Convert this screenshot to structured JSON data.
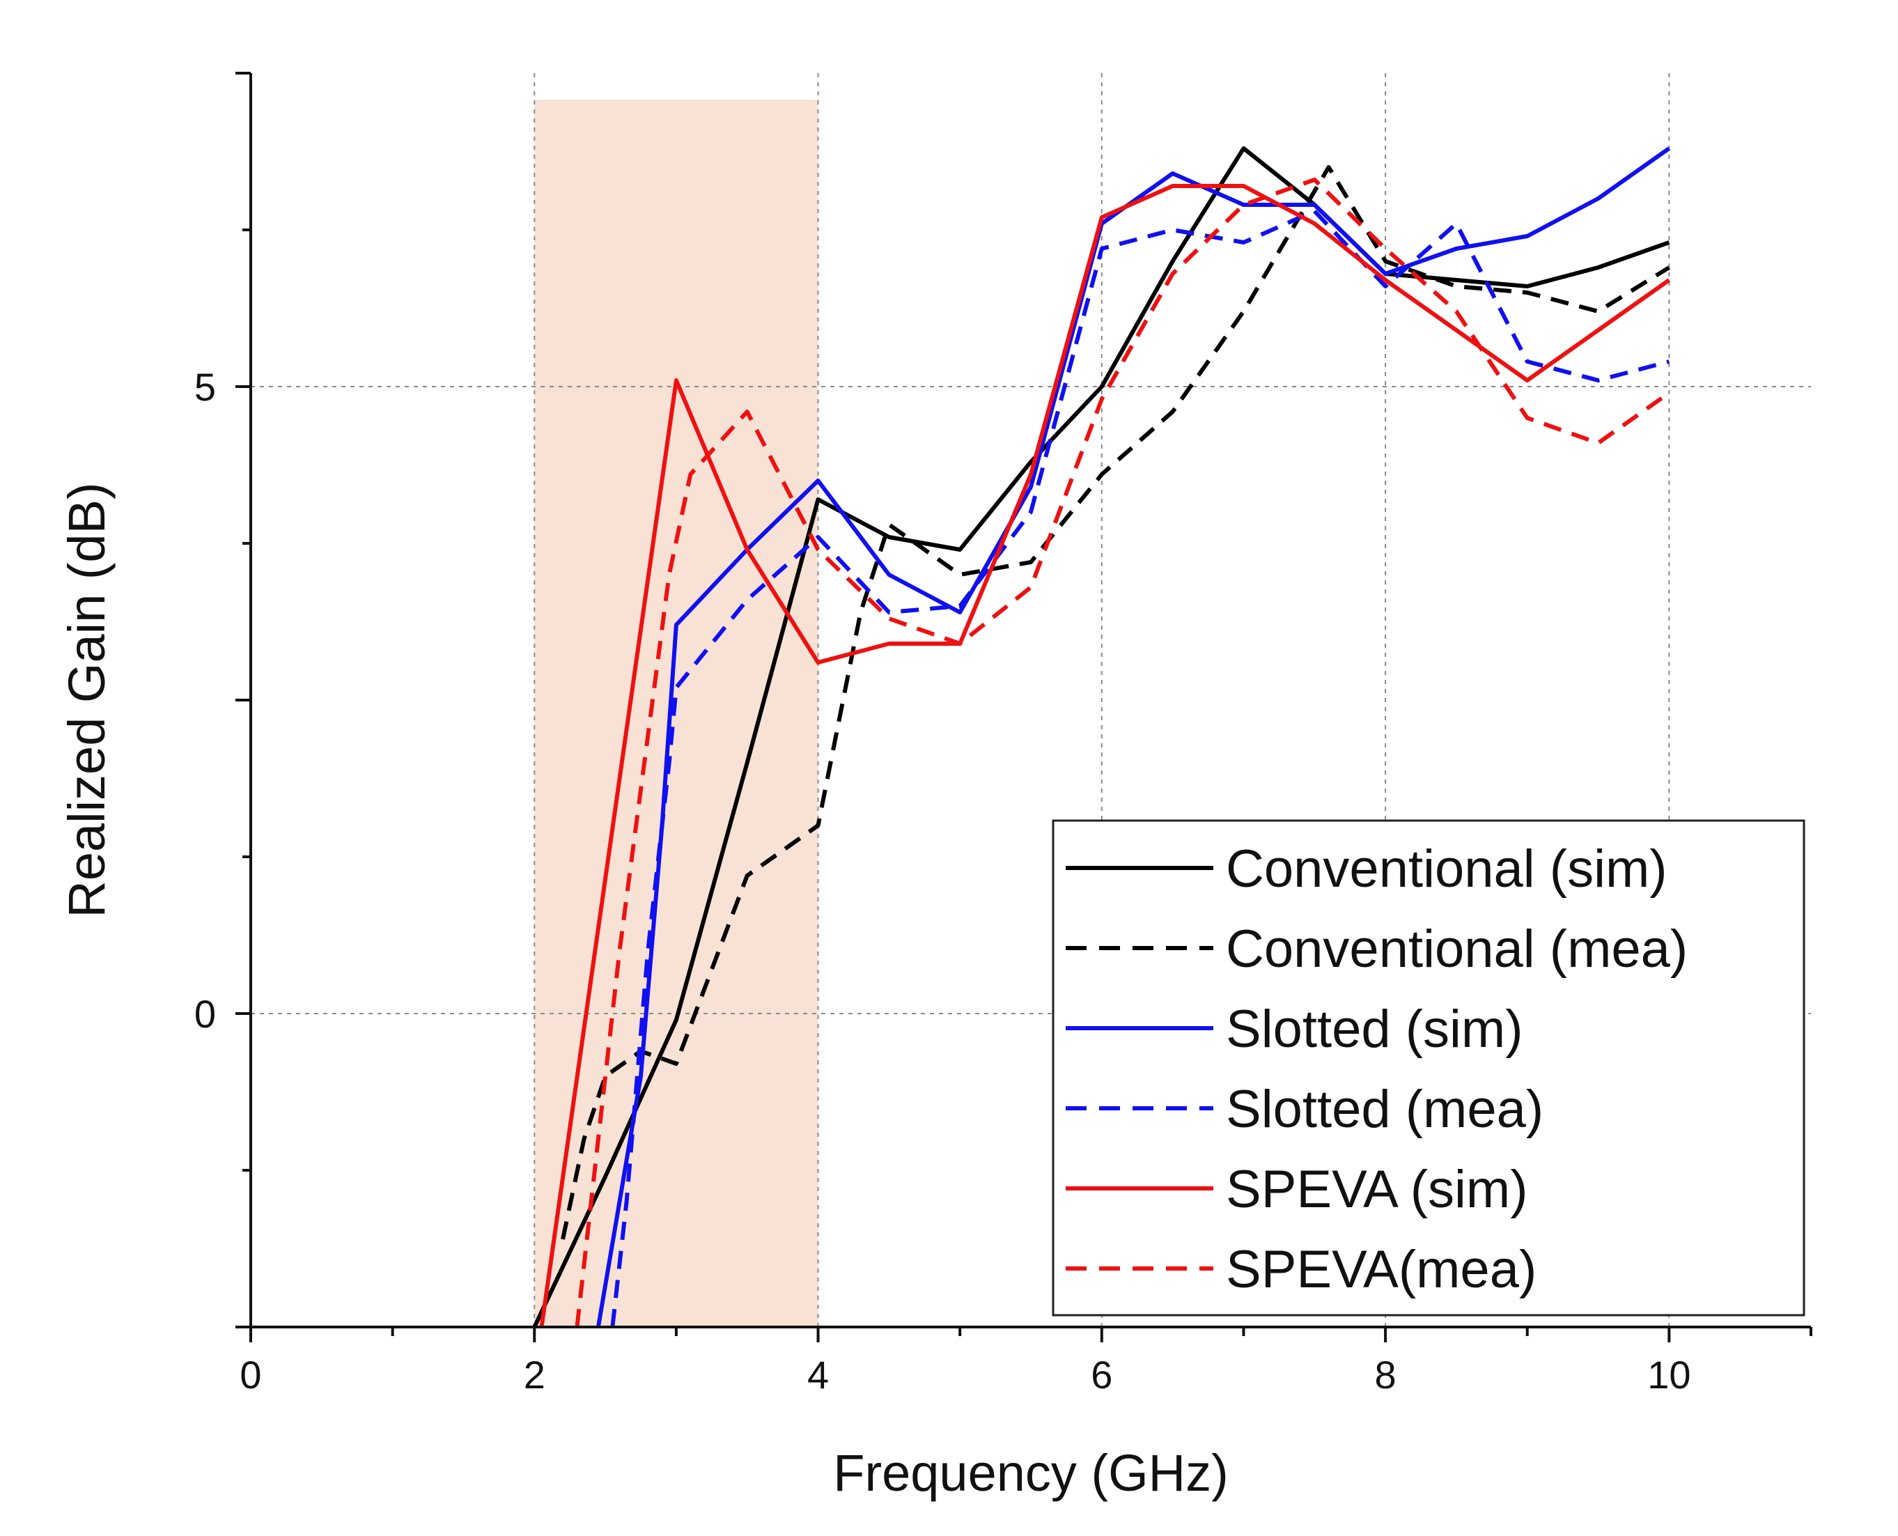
{
  "chart_data": {
    "type": "line",
    "title": "",
    "xlabel": "Frequency (GHz)",
    "ylabel": "Realized Gain (dB)",
    "xlim": [
      0,
      11
    ],
    "ylim": [
      -2.5,
      7.5
    ],
    "x_ticks": [
      0,
      2,
      4,
      6,
      8,
      10
    ],
    "x_tick_labels": [
      "0",
      "2",
      "4",
      "6",
      "8",
      "10"
    ],
    "y_ticks": [
      0,
      5
    ],
    "y_tick_labels": [
      "0",
      "5"
    ],
    "grid": true,
    "highlight_band": {
      "x_from": 2,
      "x_to": 4,
      "color": "#f7e2d5"
    },
    "legend_position": "bottom-right",
    "series": [
      {
        "name": "Conventional (sim)",
        "color": "#000000",
        "dash": "solid",
        "x": [
          2,
          2.5,
          3,
          3.5,
          4,
          4.5,
          5,
          5.5,
          6,
          6.5,
          7,
          7.5,
          8,
          8.5,
          9,
          9.5,
          10
        ],
        "y": [
          -2.5,
          -1.3,
          -0.05,
          2.0,
          4.1,
          3.8,
          3.7,
          4.4,
          5.0,
          6.0,
          6.9,
          6.45,
          5.9,
          5.85,
          5.8,
          5.95,
          6.15
        ]
      },
      {
        "name": "Conventional (mea)",
        "color": "#000000",
        "dash": "dashed",
        "x": [
          2.2,
          2.35,
          2.5,
          2.75,
          3,
          3.5,
          4,
          4.3,
          4.5,
          5,
          5.5,
          6,
          6.5,
          7,
          7.6,
          8,
          8.5,
          9,
          9.5,
          10
        ],
        "y": [
          -1.8,
          -1.0,
          -0.5,
          -0.3,
          -0.4,
          1.1,
          1.5,
          3.2,
          3.9,
          3.5,
          3.6,
          4.3,
          4.8,
          5.6,
          6.75,
          6.0,
          5.8,
          5.75,
          5.6,
          5.95
        ]
      },
      {
        "name": "Slotted (sim)",
        "color": "#1010f0",
        "dash": "solid",
        "x": [
          2.45,
          2.6,
          2.75,
          2.9,
          3,
          3.5,
          4,
          4.5,
          5,
          5.5,
          6,
          6.5,
          7,
          7.5,
          8,
          8.5,
          9,
          9.5,
          10
        ],
        "y": [
          -2.5,
          -1.5,
          -0.5,
          1.5,
          3.1,
          3.7,
          4.25,
          3.5,
          3.2,
          4.2,
          6.3,
          6.7,
          6.45,
          6.45,
          5.9,
          6.1,
          6.2,
          6.5,
          6.9
        ]
      },
      {
        "name": "Slotted (mea)",
        "color": "#1010f0",
        "dash": "dashed",
        "x": [
          2.55,
          2.65,
          2.8,
          2.95,
          3,
          3.5,
          4,
          4.5,
          5,
          5.5,
          6,
          6.5,
          7,
          7.5,
          8,
          8.5,
          9,
          9.5,
          10
        ],
        "y": [
          -2.5,
          -1.5,
          0.5,
          2.0,
          2.6,
          3.3,
          3.8,
          3.2,
          3.25,
          4.0,
          6.1,
          6.25,
          6.15,
          6.4,
          5.8,
          6.3,
          5.2,
          5.05,
          5.2
        ]
      },
      {
        "name": "SPEVA (sim)",
        "color": "#ee1111",
        "dash": "solid",
        "x": [
          2.05,
          3,
          3.5,
          4,
          4.5,
          5,
          5.5,
          6,
          6.5,
          7,
          7.5,
          8,
          8.5,
          9,
          9.5,
          10
        ],
        "y": [
          -2.5,
          5.05,
          3.7,
          2.8,
          2.95,
          2.95,
          4.3,
          6.35,
          6.6,
          6.6,
          6.3,
          5.85,
          5.45,
          5.05,
          5.45,
          5.85
        ]
      },
      {
        "name": "SPEVA(mea)",
        "color": "#ee1111",
        "dash": "dashed",
        "x": [
          2.3,
          2.6,
          2.95,
          3.1,
          3.5,
          4,
          4.5,
          5,
          5.5,
          6,
          6.5,
          7,
          7.5,
          8,
          8.5,
          9,
          9.5,
          10
        ],
        "y": [
          -2.5,
          0.5,
          3.5,
          4.3,
          4.8,
          3.7,
          3.15,
          2.95,
          3.4,
          4.9,
          5.9,
          6.45,
          6.65,
          6.1,
          5.6,
          4.75,
          4.55,
          4.95
        ]
      }
    ]
  }
}
